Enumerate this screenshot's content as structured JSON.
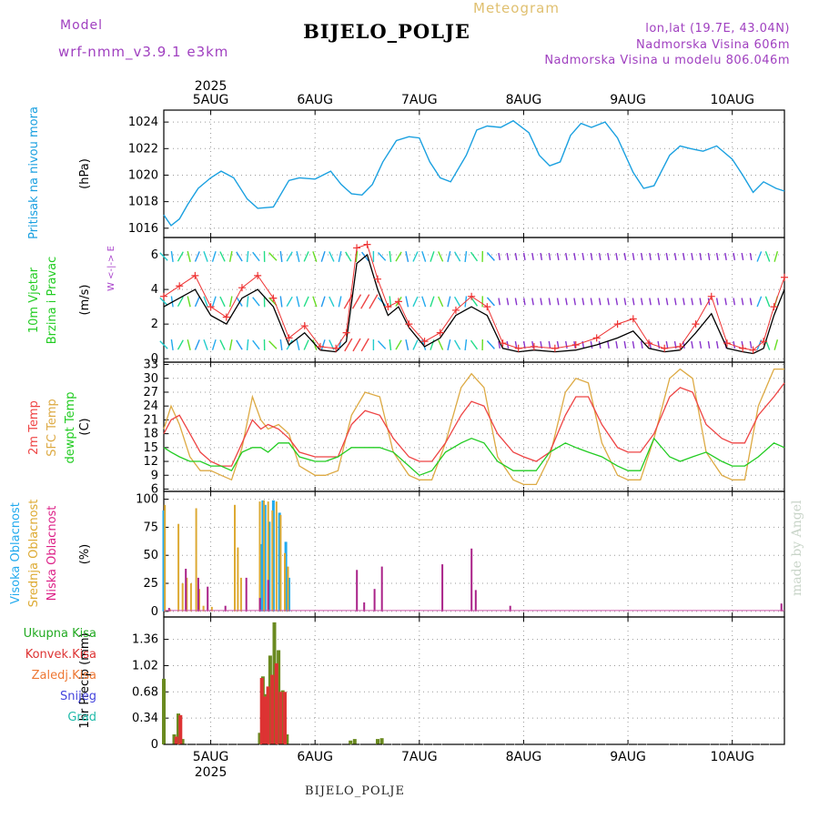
{
  "header": {
    "title": "BIJELO_POLJE",
    "subtitle": "Meteogram",
    "model_label": "Model",
    "model_name": "wrf-nmm_v3.9.1 e3km",
    "lonlat": "lon,lat (19.7E, 43.04N)",
    "elevation": "Nadmorska Visina 606m",
    "model_elevation": "Nadmorska Visina u modelu 806.046m"
  },
  "footer": {
    "station": "BIJELO_POLJE",
    "watermark": "made by Angel"
  },
  "x_axis": {
    "top_year": "2025",
    "bottom_year": "2025",
    "days": [
      "5AUG",
      "6AUG",
      "7AUG",
      "8AUG",
      "9AUG",
      "10AUG"
    ],
    "day_positions": [
      1,
      2,
      3,
      4,
      5,
      6
    ],
    "range": [
      0.55,
      6.5
    ]
  },
  "colors": {
    "pressure": "#1aa0e0",
    "wind_black": "#000000",
    "wind_red": "#ee3333",
    "temp2m": "#ee4444",
    "sfc": "#ddaa44",
    "dew": "#22cc22",
    "high": "#22aaee",
    "mid": "#ddaa33",
    "low": "#aa2288",
    "total_rain": "#6a8a20",
    "conv_rain": "#dd3333"
  },
  "chart_data": [
    {
      "type": "line",
      "panel": "pressure",
      "ylabel_left": "Pritisak na nivou mora",
      "unit": "(hPa)",
      "ylim": [
        1015.3,
        1024.9
      ],
      "yticks": [
        1016,
        1018,
        1020,
        1022,
        1024
      ],
      "series": [
        {
          "name": "Pritisak na nivou mora",
          "x": [
            0.55,
            0.62,
            0.7,
            0.78,
            0.88,
            1.0,
            1.1,
            1.22,
            1.35,
            1.45,
            1.6,
            1.75,
            1.85,
            2.0,
            2.15,
            2.25,
            2.35,
            2.45,
            2.55,
            2.65,
            2.78,
            2.9,
            3.0,
            3.1,
            3.2,
            3.3,
            3.45,
            3.55,
            3.65,
            3.78,
            3.9,
            4.05,
            4.15,
            4.25,
            4.35,
            4.45,
            4.55,
            4.65,
            4.78,
            4.9,
            5.05,
            5.15,
            5.25,
            5.4,
            5.5,
            5.6,
            5.72,
            5.85,
            6.0,
            6.1,
            6.2,
            6.3,
            6.42,
            6.5
          ],
          "y": [
            1017.0,
            1016.2,
            1016.7,
            1017.8,
            1019.0,
            1019.8,
            1020.3,
            1019.8,
            1018.2,
            1017.5,
            1017.6,
            1019.6,
            1019.8,
            1019.7,
            1020.3,
            1019.3,
            1018.6,
            1018.5,
            1019.3,
            1021.0,
            1022.6,
            1022.9,
            1022.8,
            1021.0,
            1019.8,
            1019.5,
            1021.5,
            1023.4,
            1023.7,
            1023.6,
            1024.1,
            1023.2,
            1021.5,
            1020.7,
            1021.0,
            1023.0,
            1023.9,
            1023.6,
            1024.0,
            1022.8,
            1020.2,
            1019.0,
            1019.2,
            1021.5,
            1022.2,
            1022.0,
            1021.8,
            1022.2,
            1021.2,
            1020.0,
            1018.7,
            1019.5,
            1019.0,
            1018.8
          ]
        }
      ]
    },
    {
      "type": "line",
      "panel": "wind",
      "ylabel_left": [
        "10m Vjetar",
        "Brzina i Pravac"
      ],
      "unit": "(m/s)",
      "compass": "W <-|-> E",
      "ylim": [
        -0.2,
        7.0
      ],
      "yticks": [
        0,
        2,
        4,
        6
      ],
      "levels": [
        0.8,
        3.3,
        5.9
      ],
      "series": [
        {
          "name": "10m Vjetar",
          "x": [
            0.55,
            0.7,
            0.85,
            1.0,
            1.15,
            1.3,
            1.45,
            1.6,
            1.75,
            1.9,
            2.05,
            2.2,
            2.3,
            2.4,
            2.5,
            2.6,
            2.7,
            2.8,
            2.9,
            3.05,
            3.2,
            3.35,
            3.5,
            3.65,
            3.8,
            3.95,
            4.1,
            4.3,
            4.5,
            4.7,
            4.9,
            5.05,
            5.2,
            5.35,
            5.5,
            5.65,
            5.8,
            5.95,
            6.1,
            6.2,
            6.3,
            6.4,
            6.5
          ],
          "y": [
            3.0,
            3.5,
            4.0,
            2.5,
            2.0,
            3.5,
            4.0,
            3.0,
            0.8,
            1.5,
            0.5,
            0.4,
            1.0,
            5.5,
            6.0,
            4.0,
            2.5,
            3.0,
            1.8,
            0.7,
            1.2,
            2.5,
            3.0,
            2.5,
            0.6,
            0.4,
            0.5,
            0.4,
            0.5,
            0.8,
            1.2,
            1.6,
            0.6,
            0.4,
            0.5,
            1.5,
            2.6,
            0.6,
            0.4,
            0.3,
            0.6,
            2.5,
            4.0
          ]
        },
        {
          "name": "Brzina i Pravac",
          "x": [
            0.55,
            0.7,
            0.85,
            1.0,
            1.15,
            1.3,
            1.45,
            1.6,
            1.75,
            1.9,
            2.05,
            2.2,
            2.3,
            2.4,
            2.5,
            2.6,
            2.7,
            2.8,
            2.9,
            3.05,
            3.2,
            3.35,
            3.5,
            3.65,
            3.8,
            3.95,
            4.1,
            4.3,
            4.5,
            4.7,
            4.9,
            5.05,
            5.2,
            5.35,
            5.5,
            5.65,
            5.8,
            5.95,
            6.1,
            6.2,
            6.3,
            6.4,
            6.5
          ],
          "y": [
            3.6,
            4.2,
            4.8,
            3.0,
            2.4,
            4.1,
            4.8,
            3.5,
            1.2,
            1.9,
            0.7,
            0.6,
            1.5,
            6.4,
            6.6,
            4.6,
            3.0,
            3.3,
            2.0,
            1.0,
            1.5,
            2.8,
            3.6,
            3.0,
            0.9,
            0.6,
            0.7,
            0.6,
            0.8,
            1.2,
            2.0,
            2.3,
            0.9,
            0.6,
            0.7,
            2.0,
            3.6,
            0.9,
            0.6,
            0.5,
            1.0,
            3.0,
            4.7
          ]
        }
      ]
    },
    {
      "type": "line",
      "panel": "temperature",
      "ylabel_left": [
        "2m Temp",
        "SFC Temp",
        "dewpt Temp"
      ],
      "unit": "(C)",
      "ylim": [
        5.5,
        33.5
      ],
      "yticks": [
        6,
        9,
        12,
        15,
        18,
        21,
        24,
        27,
        30,
        33
      ],
      "series": [
        {
          "name": "2m Temp",
          "x": [
            0.55,
            0.62,
            0.7,
            0.8,
            0.9,
            1.0,
            1.1,
            1.2,
            1.3,
            1.4,
            1.48,
            1.55,
            1.65,
            1.75,
            1.85,
            2.0,
            2.1,
            2.22,
            2.35,
            2.48,
            2.62,
            2.75,
            2.9,
            3.0,
            3.12,
            3.25,
            3.4,
            3.5,
            3.62,
            3.75,
            3.9,
            4.0,
            4.12,
            4.25,
            4.4,
            4.5,
            4.62,
            4.75,
            4.9,
            5.0,
            5.12,
            5.25,
            5.4,
            5.5,
            5.62,
            5.75,
            5.9,
            6.0,
            6.12,
            6.25,
            6.4,
            6.5
          ],
          "y": [
            18,
            21,
            22,
            18,
            14,
            12,
            11,
            11,
            16,
            21,
            19,
            20,
            19,
            17,
            14,
            13,
            13,
            13,
            20,
            23,
            22,
            17,
            13,
            12,
            12,
            16,
            22,
            25,
            24,
            18,
            14,
            13,
            12,
            14,
            22,
            26,
            26,
            20,
            15,
            14,
            14,
            18,
            26,
            28,
            27,
            20,
            17,
            16,
            16,
            22,
            26,
            29
          ]
        },
        {
          "name": "SFC Temp",
          "x": [
            0.55,
            0.62,
            0.7,
            0.8,
            0.9,
            1.0,
            1.1,
            1.2,
            1.3,
            1.4,
            1.48,
            1.55,
            1.65,
            1.75,
            1.85,
            2.0,
            2.1,
            2.22,
            2.35,
            2.48,
            2.62,
            2.75,
            2.9,
            3.0,
            3.12,
            3.25,
            3.4,
            3.5,
            3.62,
            3.75,
            3.9,
            4.0,
            4.12,
            4.25,
            4.4,
            4.5,
            4.62,
            4.75,
            4.9,
            5.0,
            5.12,
            5.25,
            5.4,
            5.5,
            5.62,
            5.75,
            5.9,
            6.0,
            6.12,
            6.25,
            6.4,
            6.5
          ],
          "y": [
            19,
            24,
            20,
            13,
            10,
            10,
            9,
            8,
            15,
            26,
            21,
            19,
            20,
            18,
            11,
            9,
            9,
            10,
            22,
            27,
            26,
            14,
            9,
            8,
            8,
            16,
            28,
            31,
            28,
            13,
            8,
            7,
            7,
            13,
            27,
            30,
            29,
            16,
            9,
            8,
            8,
            17,
            30,
            32,
            30,
            14,
            9,
            8,
            8,
            24,
            32,
            32
          ]
        },
        {
          "name": "dewpt Temp",
          "x": [
            0.55,
            0.62,
            0.7,
            0.8,
            0.9,
            1.0,
            1.1,
            1.2,
            1.3,
            1.4,
            1.48,
            1.55,
            1.65,
            1.75,
            1.85,
            2.0,
            2.1,
            2.22,
            2.35,
            2.48,
            2.62,
            2.75,
            2.9,
            3.0,
            3.12,
            3.25,
            3.4,
            3.5,
            3.62,
            3.75,
            3.9,
            4.0,
            4.12,
            4.25,
            4.4,
            4.5,
            4.62,
            4.75,
            4.9,
            5.0,
            5.12,
            5.25,
            5.4,
            5.5,
            5.62,
            5.75,
            5.9,
            6.0,
            6.12,
            6.25,
            6.4,
            6.5
          ],
          "y": [
            15,
            14,
            13,
            12,
            12,
            11,
            11,
            10,
            14,
            15,
            15,
            14,
            16,
            16,
            13,
            12,
            12,
            13,
            15,
            15,
            15,
            14,
            11,
            9,
            10,
            14,
            16,
            17,
            16,
            12,
            10,
            10,
            10,
            14,
            16,
            15,
            14,
            13,
            11,
            10,
            10,
            17,
            13,
            12,
            13,
            14,
            12,
            11,
            11,
            13,
            16,
            15
          ]
        }
      ]
    },
    {
      "type": "bar",
      "panel": "cloud",
      "ylabel_left": [
        "Visoka Oblacnost",
        "Srednja Oblacnost",
        "Niska Oblacnost"
      ],
      "unit": "(%)",
      "ylim": [
        -5,
        107
      ],
      "yticks": [
        0,
        25,
        50,
        75,
        100
      ],
      "series": [
        {
          "name": "Visoka Oblacnost",
          "x": [
            0.55,
            1.48,
            1.5,
            1.52,
            1.56,
            1.6,
            1.66,
            1.72,
            1.75
          ],
          "values": [
            90,
            60,
            99,
            95,
            80,
            99,
            88,
            62,
            30
          ]
        },
        {
          "name": "Srednja Oblacnost",
          "x": [
            0.55,
            0.6,
            0.68,
            0.72,
            0.76,
            0.8,
            0.85,
            0.88,
            0.92,
            1.0,
            1.22,
            1.25,
            1.28,
            1.46,
            1.5,
            1.54,
            1.58,
            1.62,
            1.66,
            1.7,
            1.73
          ],
          "values": [
            95,
            2,
            78,
            25,
            30,
            25,
            92,
            20,
            5,
            4,
            95,
            57,
            30,
            98,
            99,
            98,
            90,
            98,
            86,
            52,
            40
          ]
        },
        {
          "name": "Niska Oblacnost",
          "x": [
            0.58,
            0.74,
            0.86,
            0.95,
            1.12,
            1.32,
            1.45,
            1.53,
            2.38,
            2.45,
            2.55,
            2.62,
            3.2,
            3.48,
            3.52,
            3.85,
            6.45
          ],
          "values": [
            3,
            38,
            30,
            22,
            5,
            30,
            12,
            28,
            37,
            8,
            20,
            40,
            42,
            56,
            19,
            5,
            7
          ]
        }
      ]
    },
    {
      "type": "bar",
      "panel": "precip",
      "ylabel_left": [
        "Ukupna Kisa",
        "Konvek.Kisa",
        "Zaledj.Kisa",
        "Snijeg",
        "Grad"
      ],
      "unit": "1hr Precip (mm)",
      "ylim": [
        0,
        1.65
      ],
      "yticks": [
        0,
        0.34,
        0.68,
        1.02,
        1.36
      ],
      "series": [
        {
          "name": "Ukupna Kisa",
          "x": [
            0.55,
            0.65,
            0.69,
            0.73,
            1.47,
            1.5,
            1.53,
            1.57,
            1.61,
            1.65,
            1.69,
            1.73,
            2.34,
            2.38,
            2.6,
            2.64
          ],
          "values": [
            0.85,
            0.13,
            0.4,
            0.07,
            0.15,
            0.88,
            0.65,
            1.15,
            1.58,
            1.22,
            0.7,
            0.13,
            0.05,
            0.07,
            0.07,
            0.08
          ]
        },
        {
          "name": "Konvek.Kisa",
          "x": [
            0.67,
            0.71,
            1.49,
            1.52,
            1.55,
            1.59,
            1.63,
            1.67,
            1.71
          ],
          "values": [
            0.1,
            0.38,
            0.86,
            0.62,
            0.75,
            0.9,
            1.05,
            0.68,
            0.68
          ]
        }
      ]
    }
  ]
}
